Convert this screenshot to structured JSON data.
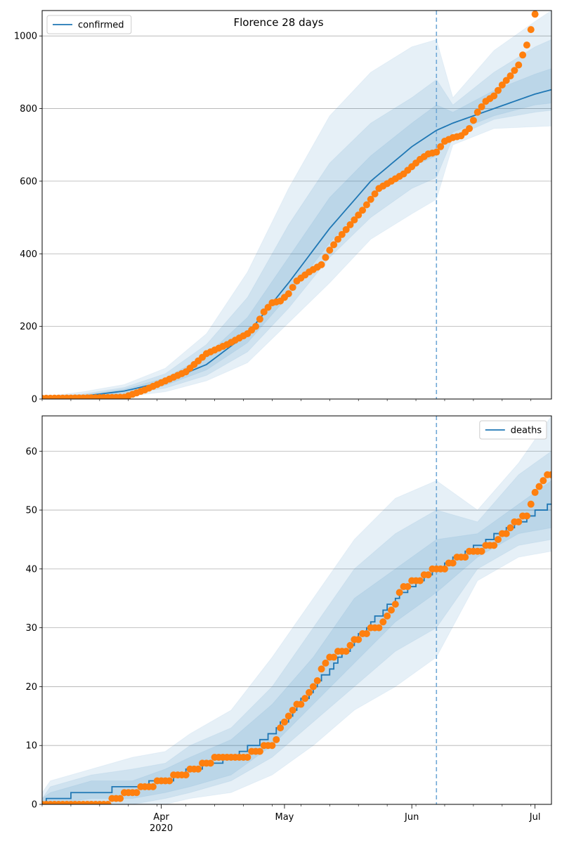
{
  "chart_data": [
    {
      "type": "line",
      "title": "Florence 28 days",
      "legend": {
        "labels": [
          "confirmed"
        ],
        "placement": "top-left"
      },
      "xlim": [
        0,
        124
      ],
      "x_start_label": "day 0 = 2020-03-03",
      "x_ticks": {
        "major": [],
        "minor_every_days": 7
      },
      "ylim": [
        0,
        1070
      ],
      "yticks": [
        "0",
        "200",
        "400",
        "600",
        "800",
        "1000"
      ],
      "ytick_values": [
        0,
        200,
        400,
        600,
        800,
        1000
      ],
      "grid": "y",
      "vline_day": 96,
      "model_days": [
        0,
        10,
        20,
        30,
        40,
        50,
        60,
        70,
        80,
        90,
        96,
        100,
        110,
        120,
        124
      ],
      "model_median": [
        2,
        8,
        22,
        48,
        95,
        180,
        320,
        470,
        600,
        695,
        740,
        760,
        800,
        840,
        852
      ],
      "bands": [
        {
          "lo": [
            0,
            1,
            6,
            20,
            50,
            100,
            210,
            320,
            440,
            510,
            550,
            700,
            745,
            750,
            752
          ],
          "hi": [
            6,
            20,
            40,
            85,
            180,
            350,
            580,
            780,
            900,
            970,
            990,
            830,
            960,
            1040,
            1070
          ]
        },
        {
          "lo": [
            0,
            3,
            12,
            30,
            65,
            130,
            250,
            390,
            500,
            580,
            610,
            720,
            770,
            790,
            795
          ],
          "hi": [
            4,
            14,
            32,
            70,
            150,
            280,
            480,
            650,
            760,
            830,
            880,
            810,
            900,
            970,
            990
          ]
        },
        {
          "lo": [
            1,
            5,
            16,
            38,
            80,
            155,
            285,
            430,
            555,
            640,
            670,
            735,
            780,
            810,
            815
          ],
          "hi": [
            3,
            11,
            27,
            58,
            120,
            225,
            390,
            555,
            670,
            760,
            810,
            790,
            850,
            895,
            910
          ]
        }
      ],
      "observed_days": [
        0,
        10,
        20,
        25,
        30,
        35,
        40,
        45,
        50,
        52,
        54,
        56,
        58,
        60,
        62,
        65,
        68,
        70,
        72,
        75,
        78,
        80,
        82,
        85,
        88,
        90,
        92,
        94,
        96,
        98,
        100,
        102,
        104,
        106,
        108,
        110,
        112,
        114,
        116,
        118,
        120
      ],
      "observed_values": [
        2,
        3,
        5,
        25,
        50,
        75,
        125,
        150,
        180,
        200,
        240,
        265,
        270,
        290,
        325,
        350,
        370,
        410,
        440,
        480,
        520,
        550,
        580,
        600,
        620,
        640,
        660,
        675,
        680,
        710,
        720,
        725,
        745,
        790,
        820,
        835,
        865,
        890,
        920,
        975,
        1060
      ]
    },
    {
      "type": "line",
      "legend": {
        "labels": [
          "deaths"
        ],
        "placement": "top-right"
      },
      "xlim": [
        0,
        124
      ],
      "x_ticks": {
        "major": [
          {
            "day": 29,
            "label": "Apr",
            "sublabel": "2020"
          },
          {
            "day": 59,
            "label": "May",
            "sublabel": ""
          },
          {
            "day": 90,
            "label": "Jun",
            "sublabel": ""
          },
          {
            "day": 120,
            "label": "Jul",
            "sublabel": ""
          }
        ],
        "minor_every_days": 7
      },
      "ylim": [
        0,
        66
      ],
      "yticks": [
        "0",
        "10",
        "20",
        "30",
        "40",
        "50",
        "60"
      ],
      "ytick_values": [
        0,
        10,
        20,
        30,
        40,
        50,
        60
      ],
      "grid": "y",
      "vline_day": 96,
      "model_days": [
        0,
        2,
        12,
        22,
        30,
        36,
        46,
        56,
        66,
        76,
        86,
        96,
        106,
        116,
        124
      ],
      "model_median": [
        0,
        1,
        2,
        3,
        4,
        6,
        8,
        12,
        20,
        28,
        35,
        40,
        44,
        48,
        51
      ],
      "bands": [
        {
          "lo": [
            0,
            0,
            0,
            0,
            0,
            1,
            2,
            5,
            10,
            16,
            20,
            25,
            38,
            42,
            43
          ],
          "hi": [
            2,
            4,
            6,
            8,
            9,
            12,
            16,
            25,
            35,
            45,
            52,
            55,
            50,
            58,
            66
          ]
        },
        {
          "lo": [
            0,
            0,
            0,
            0,
            1,
            2,
            4,
            8,
            14,
            20,
            26,
            30,
            40,
            44,
            45
          ],
          "hi": [
            1,
            3,
            5,
            6,
            7,
            10,
            13,
            20,
            30,
            40,
            46,
            50,
            48,
            56,
            60
          ]
        },
        {
          "lo": [
            0,
            0,
            1,
            1,
            2,
            3,
            5,
            10,
            17,
            24,
            31,
            36,
            42,
            46,
            47
          ],
          "hi": [
            1,
            2,
            4,
            4,
            6,
            8,
            11,
            17,
            25,
            35,
            40,
            45,
            46,
            51,
            55
          ]
        }
      ],
      "observed_days": [
        0,
        16,
        18,
        22,
        26,
        30,
        34,
        40,
        44,
        48,
        50,
        52,
        56,
        60,
        64,
        66,
        70,
        74,
        78,
        82,
        86,
        88,
        92,
        96,
        98,
        102,
        106,
        110,
        114,
        116,
        118,
        120,
        122,
        124
      ],
      "observed_values": [
        0,
        0,
        1,
        2,
        3,
        4,
        5,
        7,
        8,
        8,
        8,
        9,
        10,
        15,
        18,
        20,
        25,
        26,
        29,
        30,
        34,
        37,
        38,
        40,
        40,
        42,
        43,
        44,
        47,
        48,
        49,
        53,
        55,
        56
      ]
    }
  ]
}
